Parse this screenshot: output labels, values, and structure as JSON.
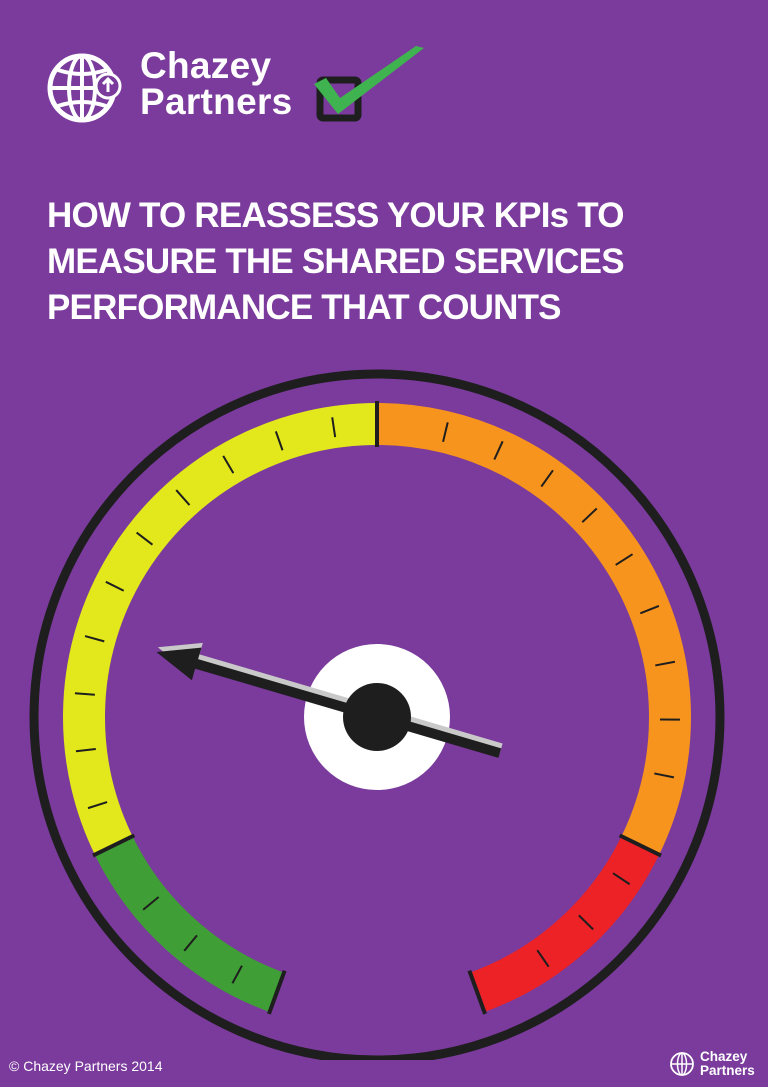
{
  "brand": {
    "name_line1": "Chazey",
    "name_line2": "Partners",
    "icon": "globe-upload-icon",
    "check_icon": "checkmark-box-icon"
  },
  "title_lines": [
    "HOW TO REASSESS YOUR KPIs TO",
    "MEASURE THE SHARED SERVICES",
    "PERFORMANCE THAT COUNTS"
  ],
  "gauge": {
    "icon": "speedometer-gauge-icon",
    "needle_level": 0.27,
    "zones": [
      {
        "color": "#3f9e35"
      },
      {
        "color": "#e2e81c"
      },
      {
        "color": "#f7941d"
      },
      {
        "color": "#ec2227"
      }
    ]
  },
  "colors": {
    "background": "#7a3b9c",
    "check_green": "#3fb34f"
  },
  "footer": {
    "copyright": "© Chazey Partners 2014",
    "brand_line1": "Chazey",
    "brand_line2": "Partners"
  }
}
